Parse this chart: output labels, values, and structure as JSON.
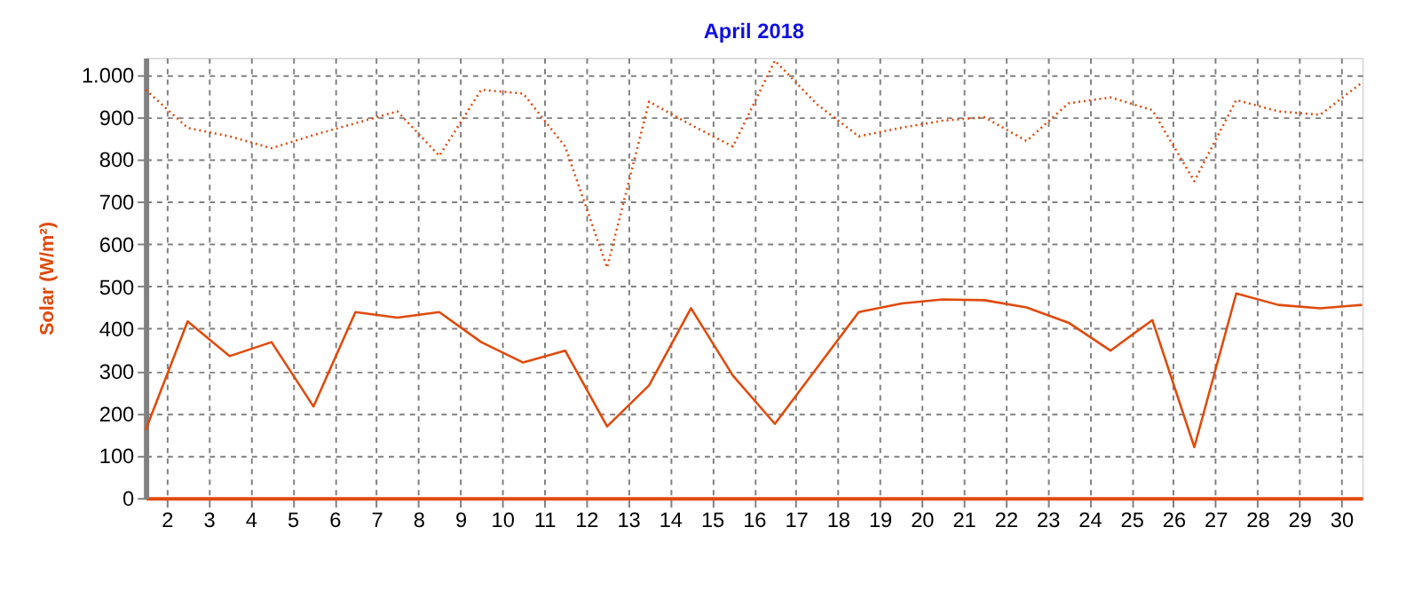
{
  "chart_data": {
    "type": "line",
    "title": "April 2018",
    "ylabel": "Solar (W/m²)",
    "x": [
      1.5,
      2.5,
      3.5,
      4.5,
      5.5,
      6.5,
      7.5,
      8.5,
      9.5,
      10.5,
      11.5,
      12.5,
      13.5,
      14.5,
      15.5,
      16.5,
      17.5,
      18.5,
      19.5,
      20.5,
      21.5,
      22.5,
      23.5,
      24.5,
      25.5,
      26.5,
      27.5,
      28.5,
      29.5,
      30.5
    ],
    "series": [
      {
        "color": "#e04a0a",
        "line_style": "dotted",
        "values": [
          964,
          874,
          854,
          826,
          857,
          885,
          913,
          808,
          964,
          955,
          830,
          544,
          936,
          881,
          830,
          1033,
          930,
          854,
          874,
          891,
          899,
          843,
          932,
          946,
          916,
          748,
          940,
          913,
          905,
          981
        ]
      },
      {
        "color": "#e04a0a",
        "line_style": "solid",
        "values": [
          161,
          417,
          335,
          368,
          216,
          439,
          426,
          439,
          368,
          320,
          348,
          169,
          266,
          448,
          289,
          175,
          307,
          439,
          459,
          469,
          467,
          450,
          414,
          348,
          420,
          120,
          483,
          456,
          448,
          456
        ]
      }
    ],
    "xlim": [
      1.5,
      30.5
    ],
    "xticks": [
      2,
      3,
      4,
      5,
      6,
      7,
      8,
      9,
      10,
      11,
      12,
      13,
      14,
      15,
      16,
      17,
      18,
      19,
      20,
      21,
      22,
      23,
      24,
      25,
      26,
      27,
      28,
      29,
      30
    ],
    "ylim": [
      0,
      1040
    ],
    "yticks": [
      0,
      100,
      200,
      300,
      400,
      500,
      600,
      700,
      800,
      900,
      {
        "value": 1000,
        "label": "1.000"
      }
    ],
    "grid": true,
    "legend": false,
    "marker": "none"
  }
}
